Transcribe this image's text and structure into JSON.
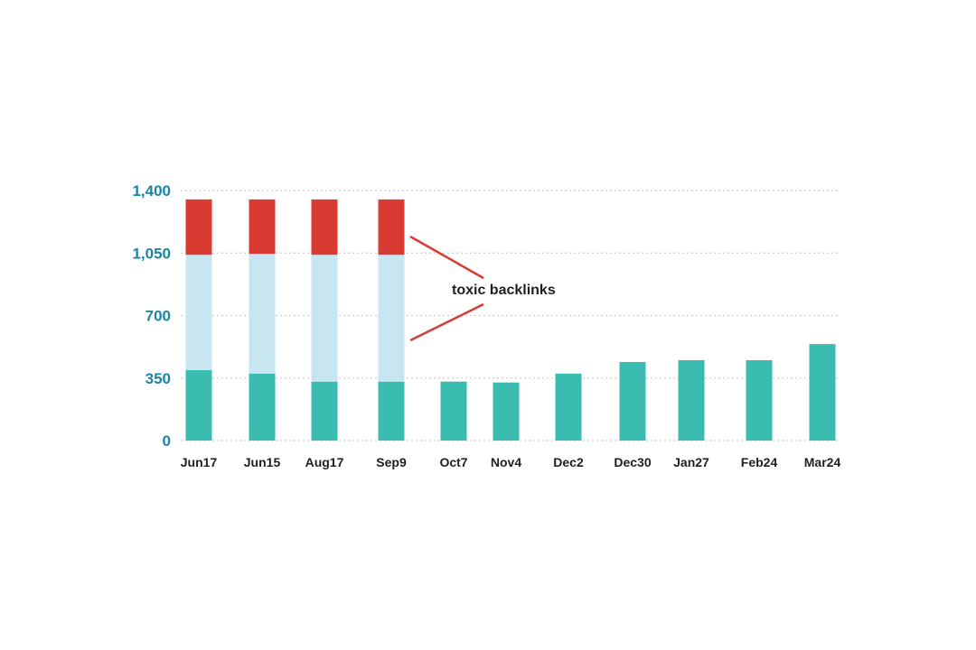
{
  "chart_data": {
    "type": "bar",
    "stacked": true,
    "categories": [
      "Jun17",
      "Jun15",
      "Aug17",
      "Sep9",
      "Oct7",
      "Nov4",
      "Dec2",
      "Dec30",
      "Jan27",
      "Feb24",
      "Mar24"
    ],
    "series": [
      {
        "color": "#3bbcb1",
        "values": [
          395,
          375,
          330,
          330,
          330,
          325,
          375,
          440,
          450,
          450,
          540
        ]
      },
      {
        "color": "#c7e6f1",
        "values": [
          645,
          670,
          710,
          710,
          0,
          0,
          0,
          0,
          0,
          0,
          0
        ]
      },
      {
        "color": "#d93b33",
        "values": [
          310,
          305,
          310,
          310,
          0,
          0,
          0,
          0,
          0,
          0,
          0
        ]
      }
    ],
    "ylim": [
      0,
      1400
    ],
    "yticks": [
      {
        "value": 0,
        "label": "0"
      },
      {
        "value": 350,
        "label": "350"
      },
      {
        "value": 700,
        "label": "700"
      },
      {
        "value": 1050,
        "label": "1,050"
      },
      {
        "value": 1400,
        "label": "1,400"
      }
    ],
    "grid": true,
    "annotation": {
      "text": "toxic backlinks",
      "color": "#d93b33"
    },
    "colors": {
      "tick_label": "#1a86a3",
      "grid": "#cccccc"
    }
  }
}
